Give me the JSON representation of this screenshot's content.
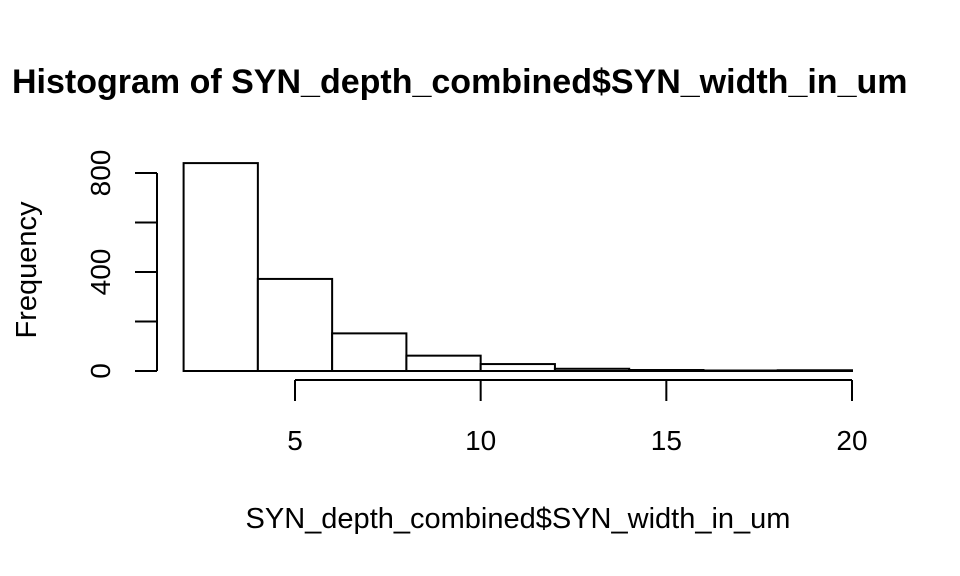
{
  "chart_data": {
    "type": "bar",
    "title": "Histogram of SYN_depth_combined$SYN_width_in_um",
    "xlabel": "SYN_depth_combined$SYN_width_in_um",
    "ylabel": "Frequency",
    "bins": [
      {
        "start": 2,
        "end": 4,
        "count": 840
      },
      {
        "start": 4,
        "end": 6,
        "count": 372
      },
      {
        "start": 6,
        "end": 8,
        "count": 152
      },
      {
        "start": 8,
        "end": 10,
        "count": 62
      },
      {
        "start": 10,
        "end": 12,
        "count": 28
      },
      {
        "start": 12,
        "end": 14,
        "count": 9
      },
      {
        "start": 14,
        "end": 16,
        "count": 4
      },
      {
        "start": 16,
        "end": 18,
        "count": 2
      },
      {
        "start": 18,
        "end": 20,
        "count": 3
      }
    ],
    "xlim": [
      5,
      20
    ],
    "ylim": [
      0,
      840
    ],
    "x_ticks": [
      5,
      10,
      15,
      20
    ],
    "y_ticks": [
      0,
      200,
      400,
      600,
      800
    ],
    "y_tick_labels": [
      "0",
      "",
      "400",
      "",
      "800"
    ],
    "bar_fill": "#ffffff",
    "bar_stroke": "#000000",
    "grid": false
  }
}
